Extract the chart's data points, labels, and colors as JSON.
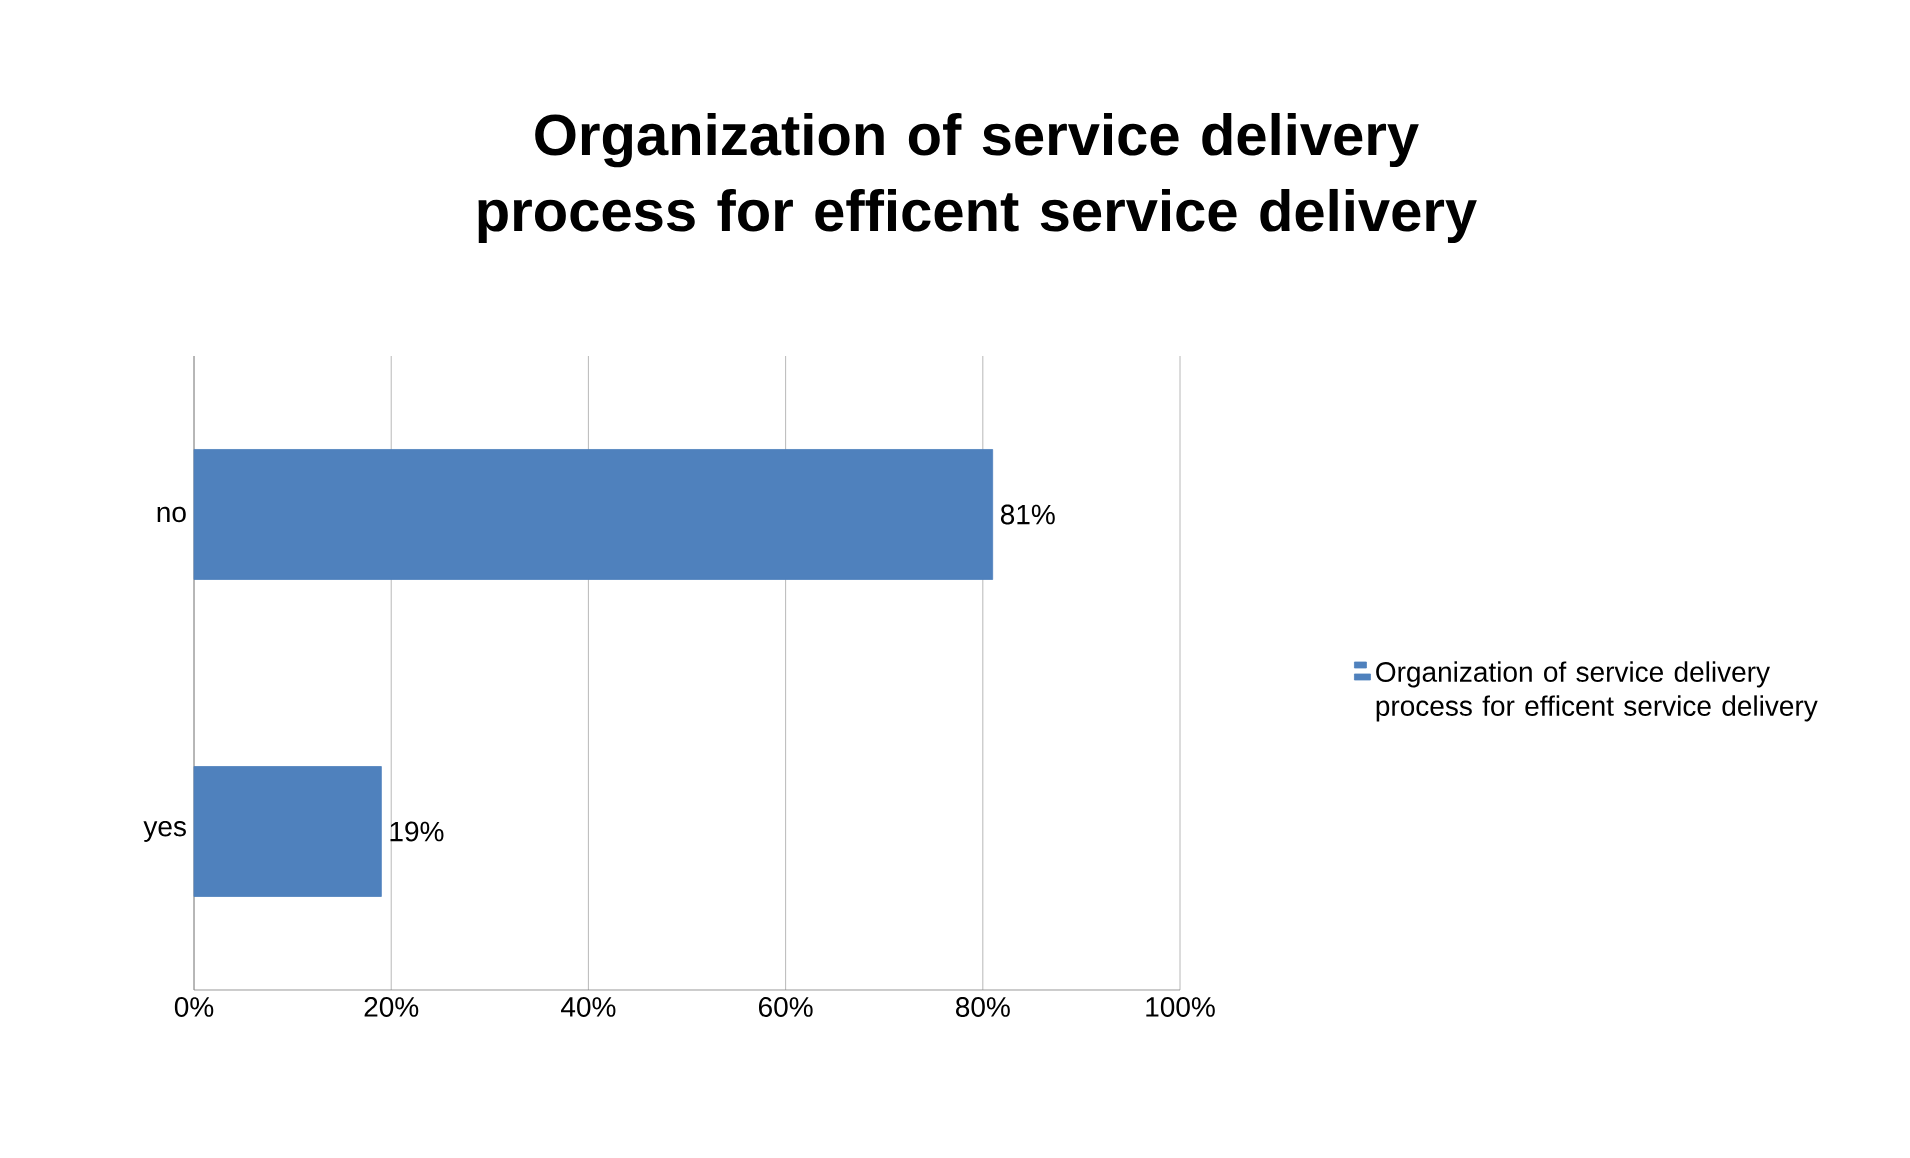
{
  "chart_data": {
    "type": "bar",
    "orientation": "horizontal",
    "title": "Organization of service delivery process for efficent service delivery",
    "categories": [
      "no",
      "yes"
    ],
    "series": [
      {
        "name": "Organization of service delivery process for efficent service delivery",
        "color": "#4f81bd",
        "values": [
          81,
          19
        ],
        "value_labels": [
          "81%",
          "19%"
        ]
      }
    ],
    "xlim": [
      0,
      100
    ],
    "xticks": [
      {
        "value": 0,
        "label": "0%"
      },
      {
        "value": 20,
        "label": "20%"
      },
      {
        "value": 40,
        "label": "40%"
      },
      {
        "value": 60,
        "label": "60%"
      },
      {
        "value": 80,
        "label": "80%"
      },
      {
        "value": 100,
        "label": "100%"
      }
    ],
    "grid": "x",
    "legend": "right"
  }
}
